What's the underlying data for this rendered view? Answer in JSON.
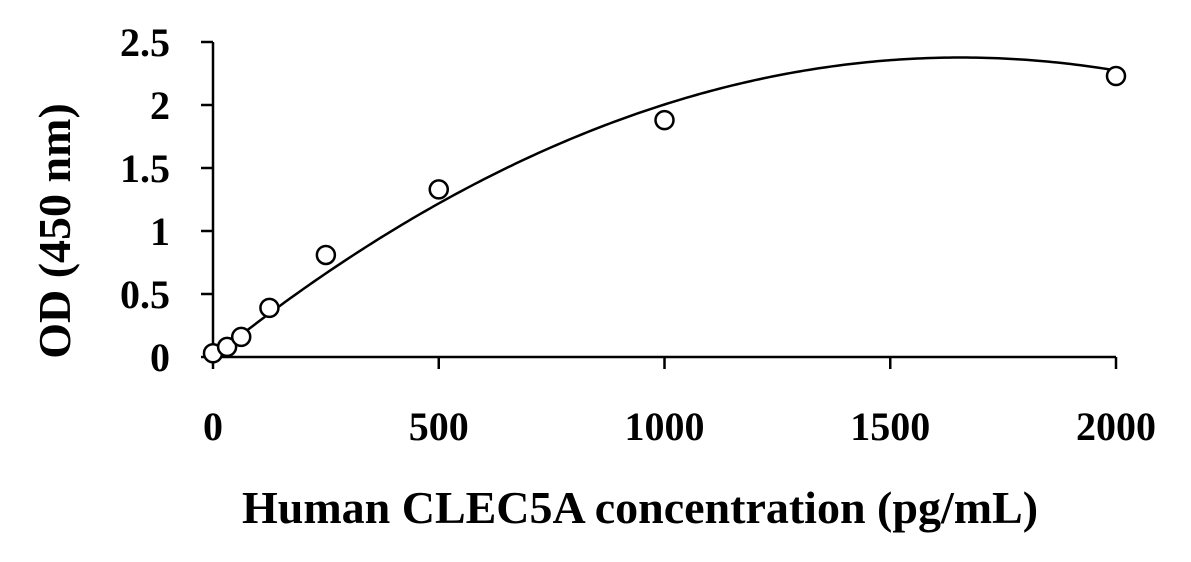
{
  "chart_data": {
    "type": "scatter",
    "title": "",
    "xlabel": "Human CLEC5A concentration (pg/mL)",
    "ylabel": "OD (450 nm)",
    "xlim": [
      0,
      2000
    ],
    "ylim": [
      0,
      2.5
    ],
    "x_ticks": [
      0,
      500,
      1000,
      1500,
      2000
    ],
    "x_tick_labels": [
      "0",
      "500",
      "1000",
      "1500",
      "2000"
    ],
    "y_ticks": [
      0,
      0.5,
      1,
      1.5,
      2,
      2.5
    ],
    "y_tick_labels": [
      "0",
      "0.5",
      "1",
      "1.5",
      "2",
      "2.5"
    ],
    "grid": false,
    "legend": "none",
    "series": [
      {
        "marker": "open-circle",
        "x": [
          0,
          31.25,
          62.5,
          125,
          250,
          500,
          1000,
          2000
        ],
        "y": [
          0.03,
          0.08,
          0.16,
          0.39,
          0.81,
          1.33,
          1.88,
          2.23
        ]
      }
    ],
    "fit": {
      "type": "polynomial-2",
      "coefficients": [
        -8.67e-07,
        0.002871,
        0.0
      ]
    }
  }
}
